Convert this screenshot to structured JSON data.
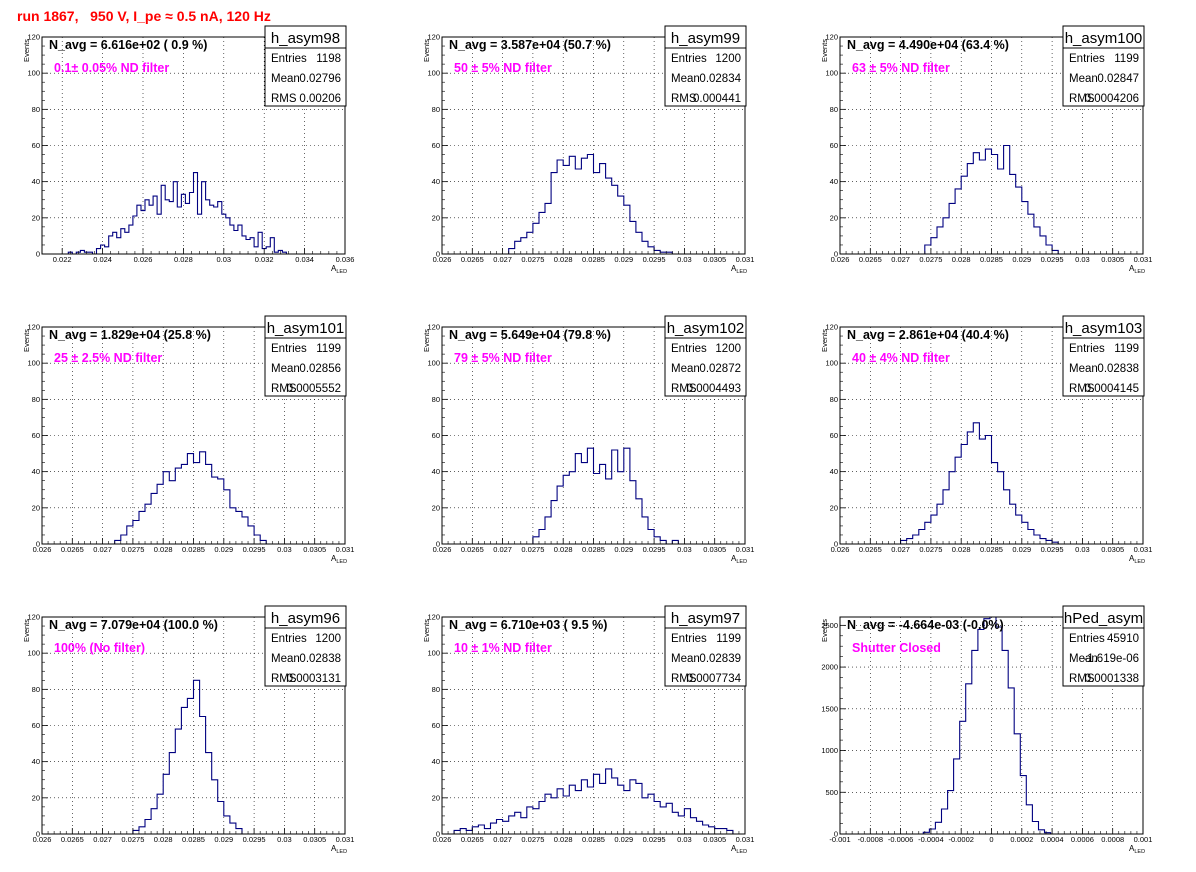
{
  "page_title": "run 1867,   950 V, I_pe ≈ 0.5 nA, 120 Hz",
  "colors": {
    "hist": "#000080",
    "note": "#ff00ff",
    "title": "#ff0000",
    "grid": "#000000"
  },
  "chart_data": [
    {
      "type": "bar",
      "name": "h_asym98",
      "nav": "N_avg = 6.616e+02 ( 0.9 %)",
      "note": "0.1± 0.05% ND filter",
      "stats": [
        [
          "Entries",
          "1198"
        ],
        [
          "Mean",
          "0.02796"
        ],
        [
          "RMS",
          "0.00206"
        ]
      ],
      "xlim": [
        0.021,
        0.036
      ],
      "ylim": [
        0,
        120
      ],
      "ylabel": "Events",
      "xlabel": "A_LED",
      "grid": true,
      "xticks": [
        0.022,
        0.024,
        0.026,
        0.028,
        0.03,
        0.032,
        0.034,
        0.036
      ],
      "xticklabels": [
        "0.022",
        "0.024",
        "0.026",
        "0.028",
        "0.03",
        "0.032",
        "0.034",
        "0.036"
      ],
      "yticks": [
        0,
        20,
        40,
        60,
        80,
        100,
        120
      ],
      "x": [
        0.0224,
        0.0226,
        0.0228,
        0.023,
        0.0232,
        0.0234,
        0.0236,
        0.0238,
        0.024,
        0.0242,
        0.0244,
        0.0246,
        0.0248,
        0.025,
        0.0252,
        0.0254,
        0.0256,
        0.0258,
        0.026,
        0.0262,
        0.0264,
        0.0266,
        0.0268,
        0.027,
        0.0272,
        0.0274,
        0.0276,
        0.0278,
        0.028,
        0.0282,
        0.0284,
        0.0286,
        0.0288,
        0.029,
        0.0292,
        0.0294,
        0.0296,
        0.0298,
        0.03,
        0.0302,
        0.0304,
        0.0306,
        0.0308,
        0.031,
        0.0312,
        0.0314,
        0.0316,
        0.0318,
        0.032,
        0.0322,
        0.0324,
        0.0326,
        0.0328,
        0.033,
        0.0332
      ],
      "values": [
        1,
        0,
        1,
        2,
        1,
        1,
        0,
        3,
        5,
        4,
        10,
        12,
        9,
        14,
        12,
        16,
        21,
        27,
        24,
        30,
        27,
        32,
        22,
        38,
        30,
        29,
        40,
        26,
        33,
        28,
        34,
        45,
        22,
        40,
        30,
        27,
        26,
        29,
        22,
        20,
        16,
        13,
        16,
        10,
        8,
        9,
        4,
        12,
        3,
        4,
        9,
        1,
        2,
        1,
        0
      ]
    },
    {
      "type": "bar",
      "name": "h_asym99",
      "nav": "N_avg = 3.587e+04 (50.7 %)",
      "note": "50 ± 5% ND filter",
      "stats": [
        [
          "Entries",
          "1200"
        ],
        [
          "Mean",
          "0.02834"
        ],
        [
          "RMS",
          "0.000441"
        ]
      ],
      "xlim": [
        0.026,
        0.031
      ],
      "ylim": [
        0,
        120
      ],
      "ylabel": "Events",
      "xlabel": "A_LED",
      "grid": true,
      "xticks": [
        0.026,
        0.0265,
        0.027,
        0.0275,
        0.028,
        0.0285,
        0.029,
        0.0295,
        0.03,
        0.0305,
        0.031
      ],
      "xticklabels": [
        "0.026",
        "0.0265",
        "0.027",
        "0.0275",
        "0.028",
        "0.0285",
        "0.029",
        "0.0295",
        "0.03",
        "0.0305",
        "0.031"
      ],
      "yticks": [
        0,
        20,
        40,
        60,
        80,
        100,
        120
      ],
      "x": [
        0.02715,
        0.02725,
        0.02735,
        0.02745,
        0.02755,
        0.02765,
        0.02775,
        0.02785,
        0.02795,
        0.02805,
        0.02815,
        0.02825,
        0.02835,
        0.02845,
        0.02855,
        0.02865,
        0.02875,
        0.02885,
        0.02895,
        0.02905,
        0.02915,
        0.02925,
        0.02935,
        0.02945,
        0.02955,
        0.02965,
        0.02975
      ],
      "values": [
        3,
        7,
        9,
        12,
        17,
        23,
        28,
        45,
        52,
        49,
        54,
        47,
        53,
        55,
        45,
        50,
        42,
        38,
        32,
        27,
        18,
        12,
        7,
        4,
        2,
        1,
        1
      ]
    },
    {
      "type": "bar",
      "name": "h_asym100",
      "nav": "N_avg = 4.490e+04 (63.4 %)",
      "note": "63 ± 5% ND filter",
      "stats": [
        [
          "Entries",
          "1199"
        ],
        [
          "Mean",
          "0.02847"
        ],
        [
          "RMS",
          "0.0004206"
        ]
      ],
      "xlim": [
        0.026,
        0.031
      ],
      "ylim": [
        0,
        120
      ],
      "ylabel": "Events",
      "xlabel": "A_LED",
      "grid": true,
      "xticks": [
        0.026,
        0.0265,
        0.027,
        0.0275,
        0.028,
        0.0285,
        0.029,
        0.0295,
        0.03,
        0.0305,
        0.031
      ],
      "xticklabels": [
        "0.026",
        "0.0265",
        "0.027",
        "0.0275",
        "0.028",
        "0.0285",
        "0.029",
        "0.0295",
        "0.03",
        "0.0305",
        "0.031"
      ],
      "yticks": [
        0,
        20,
        40,
        60,
        80,
        100,
        120
      ],
      "x": [
        0.02745,
        0.02755,
        0.02765,
        0.02775,
        0.02785,
        0.02795,
        0.02805,
        0.02815,
        0.02825,
        0.02835,
        0.02845,
        0.02855,
        0.02865,
        0.02875,
        0.02885,
        0.02895,
        0.02905,
        0.02915,
        0.02925,
        0.02935,
        0.02945,
        0.02955
      ],
      "values": [
        5,
        9,
        15,
        20,
        28,
        36,
        43,
        50,
        56,
        52,
        58,
        55,
        47,
        60,
        44,
        37,
        29,
        22,
        15,
        10,
        5,
        2
      ]
    },
    {
      "type": "bar",
      "name": "h_asym101",
      "nav": "N_avg = 1.829e+04 (25.8 %)",
      "note": "25 ± 2.5% ND filter",
      "stats": [
        [
          "Entries",
          "1199"
        ],
        [
          "Mean",
          "0.02856"
        ],
        [
          "RMS",
          "0.0005552"
        ]
      ],
      "xlim": [
        0.026,
        0.031
      ],
      "ylim": [
        0,
        120
      ],
      "ylabel": "Events",
      "xlabel": "A_LED",
      "grid": true,
      "xticks": [
        0.026,
        0.0265,
        0.027,
        0.0275,
        0.028,
        0.0285,
        0.029,
        0.0295,
        0.03,
        0.0305,
        0.031
      ],
      "xticklabels": [
        "0.026",
        "0.0265",
        "0.027",
        "0.0275",
        "0.028",
        "0.0285",
        "0.029",
        "0.0295",
        "0.03",
        "0.0305",
        "0.031"
      ],
      "yticks": [
        0,
        20,
        40,
        60,
        80,
        100,
        120
      ],
      "x": [
        0.02725,
        0.02735,
        0.02745,
        0.02755,
        0.02765,
        0.02775,
        0.02785,
        0.02795,
        0.02805,
        0.02815,
        0.02825,
        0.02835,
        0.02845,
        0.02855,
        0.02865,
        0.02875,
        0.02885,
        0.02895,
        0.02905,
        0.02915,
        0.02925,
        0.02935,
        0.02945,
        0.02955,
        0.02965
      ],
      "values": [
        2,
        5,
        10,
        13,
        18,
        22,
        28,
        33,
        40,
        35,
        42,
        44,
        50,
        45,
        51,
        44,
        37,
        36,
        30,
        20,
        18,
        15,
        10,
        5,
        2
      ]
    },
    {
      "type": "bar",
      "name": "h_asym102",
      "nav": "N_avg = 5.649e+04 (79.8 %)",
      "note": "79 ± 5% ND filter",
      "stats": [
        [
          "Entries",
          "1200"
        ],
        [
          "Mean",
          "0.02872"
        ],
        [
          "RMS",
          "0.0004493"
        ]
      ],
      "xlim": [
        0.026,
        0.031
      ],
      "ylim": [
        0,
        120
      ],
      "ylabel": "Events",
      "xlabel": "A_LED",
      "grid": true,
      "xticks": [
        0.026,
        0.0265,
        0.027,
        0.0275,
        0.028,
        0.0285,
        0.029,
        0.0295,
        0.03,
        0.0305,
        0.031
      ],
      "xticklabels": [
        "0.026",
        "0.0265",
        "0.027",
        "0.0275",
        "0.028",
        "0.0285",
        "0.029",
        "0.0295",
        "0.03",
        "0.0305",
        "0.031"
      ],
      "yticks": [
        0,
        20,
        40,
        60,
        80,
        100,
        120
      ],
      "x": [
        0.02755,
        0.02765,
        0.02775,
        0.02785,
        0.02795,
        0.02805,
        0.02815,
        0.02825,
        0.02835,
        0.02845,
        0.02855,
        0.02865,
        0.02875,
        0.02885,
        0.02895,
        0.02905,
        0.02915,
        0.02925,
        0.02935,
        0.02945,
        0.02955,
        0.02965,
        0.02975,
        0.02985
      ],
      "values": [
        4,
        8,
        15,
        24,
        32,
        38,
        40,
        50,
        45,
        53,
        39,
        44,
        36,
        52,
        40,
        53,
        35,
        25,
        15,
        8,
        4,
        2,
        0,
        2
      ]
    },
    {
      "type": "bar",
      "name": "h_asym103",
      "nav": "N_avg = 2.861e+04 (40.4 %)",
      "note": "40 ± 4% ND filter",
      "stats": [
        [
          "Entries",
          "1199"
        ],
        [
          "Mean",
          "0.02838"
        ],
        [
          "RMS",
          "0.0004145"
        ]
      ],
      "xlim": [
        0.026,
        0.031
      ],
      "ylim": [
        0,
        120
      ],
      "ylabel": "Events",
      "xlabel": "A_LED",
      "grid": true,
      "xticks": [
        0.026,
        0.0265,
        0.027,
        0.0275,
        0.028,
        0.0285,
        0.029,
        0.0295,
        0.03,
        0.0305,
        0.031
      ],
      "xticklabels": [
        "0.026",
        "0.0265",
        "0.027",
        "0.0275",
        "0.028",
        "0.0285",
        "0.029",
        "0.0295",
        "0.03",
        "0.0305",
        "0.031"
      ],
      "yticks": [
        0,
        20,
        40,
        60,
        80,
        100,
        120
      ],
      "x": [
        0.02705,
        0.02715,
        0.02725,
        0.02735,
        0.02745,
        0.02755,
        0.02765,
        0.02775,
        0.02785,
        0.02795,
        0.02805,
        0.02815,
        0.02825,
        0.02835,
        0.02845,
        0.02855,
        0.02865,
        0.02875,
        0.02885,
        0.02895,
        0.02905,
        0.02915,
        0.02925,
        0.02935,
        0.02945,
        0.02955
      ],
      "values": [
        2,
        3,
        5,
        8,
        12,
        16,
        22,
        30,
        40,
        48,
        55,
        62,
        67,
        58,
        60,
        45,
        40,
        30,
        22,
        16,
        12,
        8,
        5,
        3,
        2,
        1
      ]
    },
    {
      "type": "bar",
      "name": "h_asym96",
      "nav": "N_avg = 7.079e+04 (100.0 %)",
      "note": "100% (No filter)",
      "stats": [
        [
          "Entries",
          "1200"
        ],
        [
          "Mean",
          "0.02838"
        ],
        [
          "RMS",
          "0.0003131"
        ]
      ],
      "xlim": [
        0.026,
        0.031
      ],
      "ylim": [
        0,
        120
      ],
      "ylabel": "Events",
      "xlabel": "A_LED",
      "grid": true,
      "xticks": [
        0.026,
        0.0265,
        0.027,
        0.0275,
        0.028,
        0.0285,
        0.029,
        0.0295,
        0.03,
        0.0305,
        0.031
      ],
      "xticklabels": [
        "0.026",
        "0.0265",
        "0.027",
        "0.0275",
        "0.028",
        "0.0285",
        "0.029",
        "0.0295",
        "0.03",
        "0.0305",
        "0.031"
      ],
      "yticks": [
        0,
        20,
        40,
        60,
        80,
        100,
        120
      ],
      "x": [
        0.02755,
        0.02765,
        0.02775,
        0.02785,
        0.02795,
        0.02805,
        0.02815,
        0.02825,
        0.02835,
        0.02845,
        0.02855,
        0.02865,
        0.02875,
        0.02885,
        0.02895,
        0.02905,
        0.02915,
        0.02925
      ],
      "values": [
        2,
        4,
        8,
        14,
        22,
        33,
        45,
        58,
        70,
        75,
        85,
        65,
        45,
        30,
        18,
        10,
        6,
        3
      ]
    },
    {
      "type": "bar",
      "name": "h_asym97",
      "nav": "N_avg = 6.710e+03 ( 9.5 %)",
      "note": "10 ± 1% ND filter",
      "stats": [
        [
          "Entries",
          "1199"
        ],
        [
          "Mean",
          "0.02839"
        ],
        [
          "RMS",
          "0.0007734"
        ]
      ],
      "xlim": [
        0.026,
        0.031
      ],
      "ylim": [
        0,
        120
      ],
      "ylabel": "Events",
      "xlabel": "A_LED",
      "grid": true,
      "xticks": [
        0.026,
        0.0265,
        0.027,
        0.0275,
        0.028,
        0.0285,
        0.029,
        0.0295,
        0.03,
        0.0305,
        0.031
      ],
      "xticklabels": [
        "0.026",
        "0.0265",
        "0.027",
        "0.0275",
        "0.028",
        "0.0285",
        "0.029",
        "0.0295",
        "0.03",
        "0.0305",
        "0.031"
      ],
      "yticks": [
        0,
        20,
        40,
        60,
        80,
        100,
        120
      ],
      "x": [
        0.02625,
        0.02635,
        0.02645,
        0.02655,
        0.02665,
        0.02675,
        0.02685,
        0.02695,
        0.02705,
        0.02715,
        0.02725,
        0.02735,
        0.02745,
        0.02755,
        0.02765,
        0.02775,
        0.02785,
        0.02795,
        0.02805,
        0.02815,
        0.02825,
        0.02835,
        0.02845,
        0.02855,
        0.02865,
        0.02875,
        0.02885,
        0.02895,
        0.02905,
        0.02915,
        0.02925,
        0.02935,
        0.02945,
        0.02955,
        0.02965,
        0.02975,
        0.02985,
        0.02995,
        0.03005,
        0.03015,
        0.03025,
        0.03035,
        0.03045,
        0.03055,
        0.03065,
        0.03075
      ],
      "values": [
        2,
        3,
        2,
        4,
        5,
        3,
        6,
        8,
        7,
        10,
        12,
        9,
        15,
        14,
        18,
        22,
        20,
        25,
        21,
        27,
        24,
        30,
        26,
        33,
        28,
        36,
        31,
        27,
        24,
        30,
        28,
        20,
        22,
        18,
        15,
        17,
        12,
        10,
        14,
        9,
        7,
        5,
        4,
        3,
        3,
        2
      ]
    },
    {
      "type": "bar",
      "name": "hPed_asym",
      "nav": "N_avg = -4.664e-03 (-0.0%)",
      "note": "Shutter Closed",
      "stats": [
        [
          "Entries",
          "45910"
        ],
        [
          "Mean",
          "-1.619e-06"
        ],
        [
          "RMS",
          "0.0001338"
        ]
      ],
      "xlim": [
        -0.001,
        0.001
      ],
      "ylim": [
        0,
        2600
      ],
      "ylabel": "Events",
      "xlabel": "A_LED",
      "grid": true,
      "xticks": [
        -0.001,
        -0.0008,
        -0.0006,
        -0.0004,
        -0.0002,
        0,
        0.0002,
        0.0004,
        0.0006,
        0.0008,
        0.001
      ],
      "xticklabels": [
        "-0.001",
        "-0.0008",
        "-0.0006",
        "-0.0004",
        "-0.0002",
        "0",
        "0.0002",
        "0.0004",
        "0.0006",
        "0.0008",
        "0.001"
      ],
      "yticks": [
        0,
        500,
        1000,
        1500,
        2000,
        2500
      ],
      "x": [
        -0.00043,
        -0.00039,
        -0.00035,
        -0.00031,
        -0.00027,
        -0.00023,
        -0.00019,
        -0.00015,
        -0.00011,
        -7e-05,
        -3e-05,
        1e-05,
        5e-05,
        9e-05,
        0.00013,
        0.00017,
        0.00021,
        0.00025,
        0.00029,
        0.00033,
        0.00037
      ],
      "values": [
        20,
        60,
        140,
        300,
        520,
        900,
        1350,
        1800,
        2200,
        2450,
        2580,
        2620,
        2480,
        2200,
        1750,
        1200,
        700,
        350,
        150,
        50,
        15
      ]
    }
  ]
}
